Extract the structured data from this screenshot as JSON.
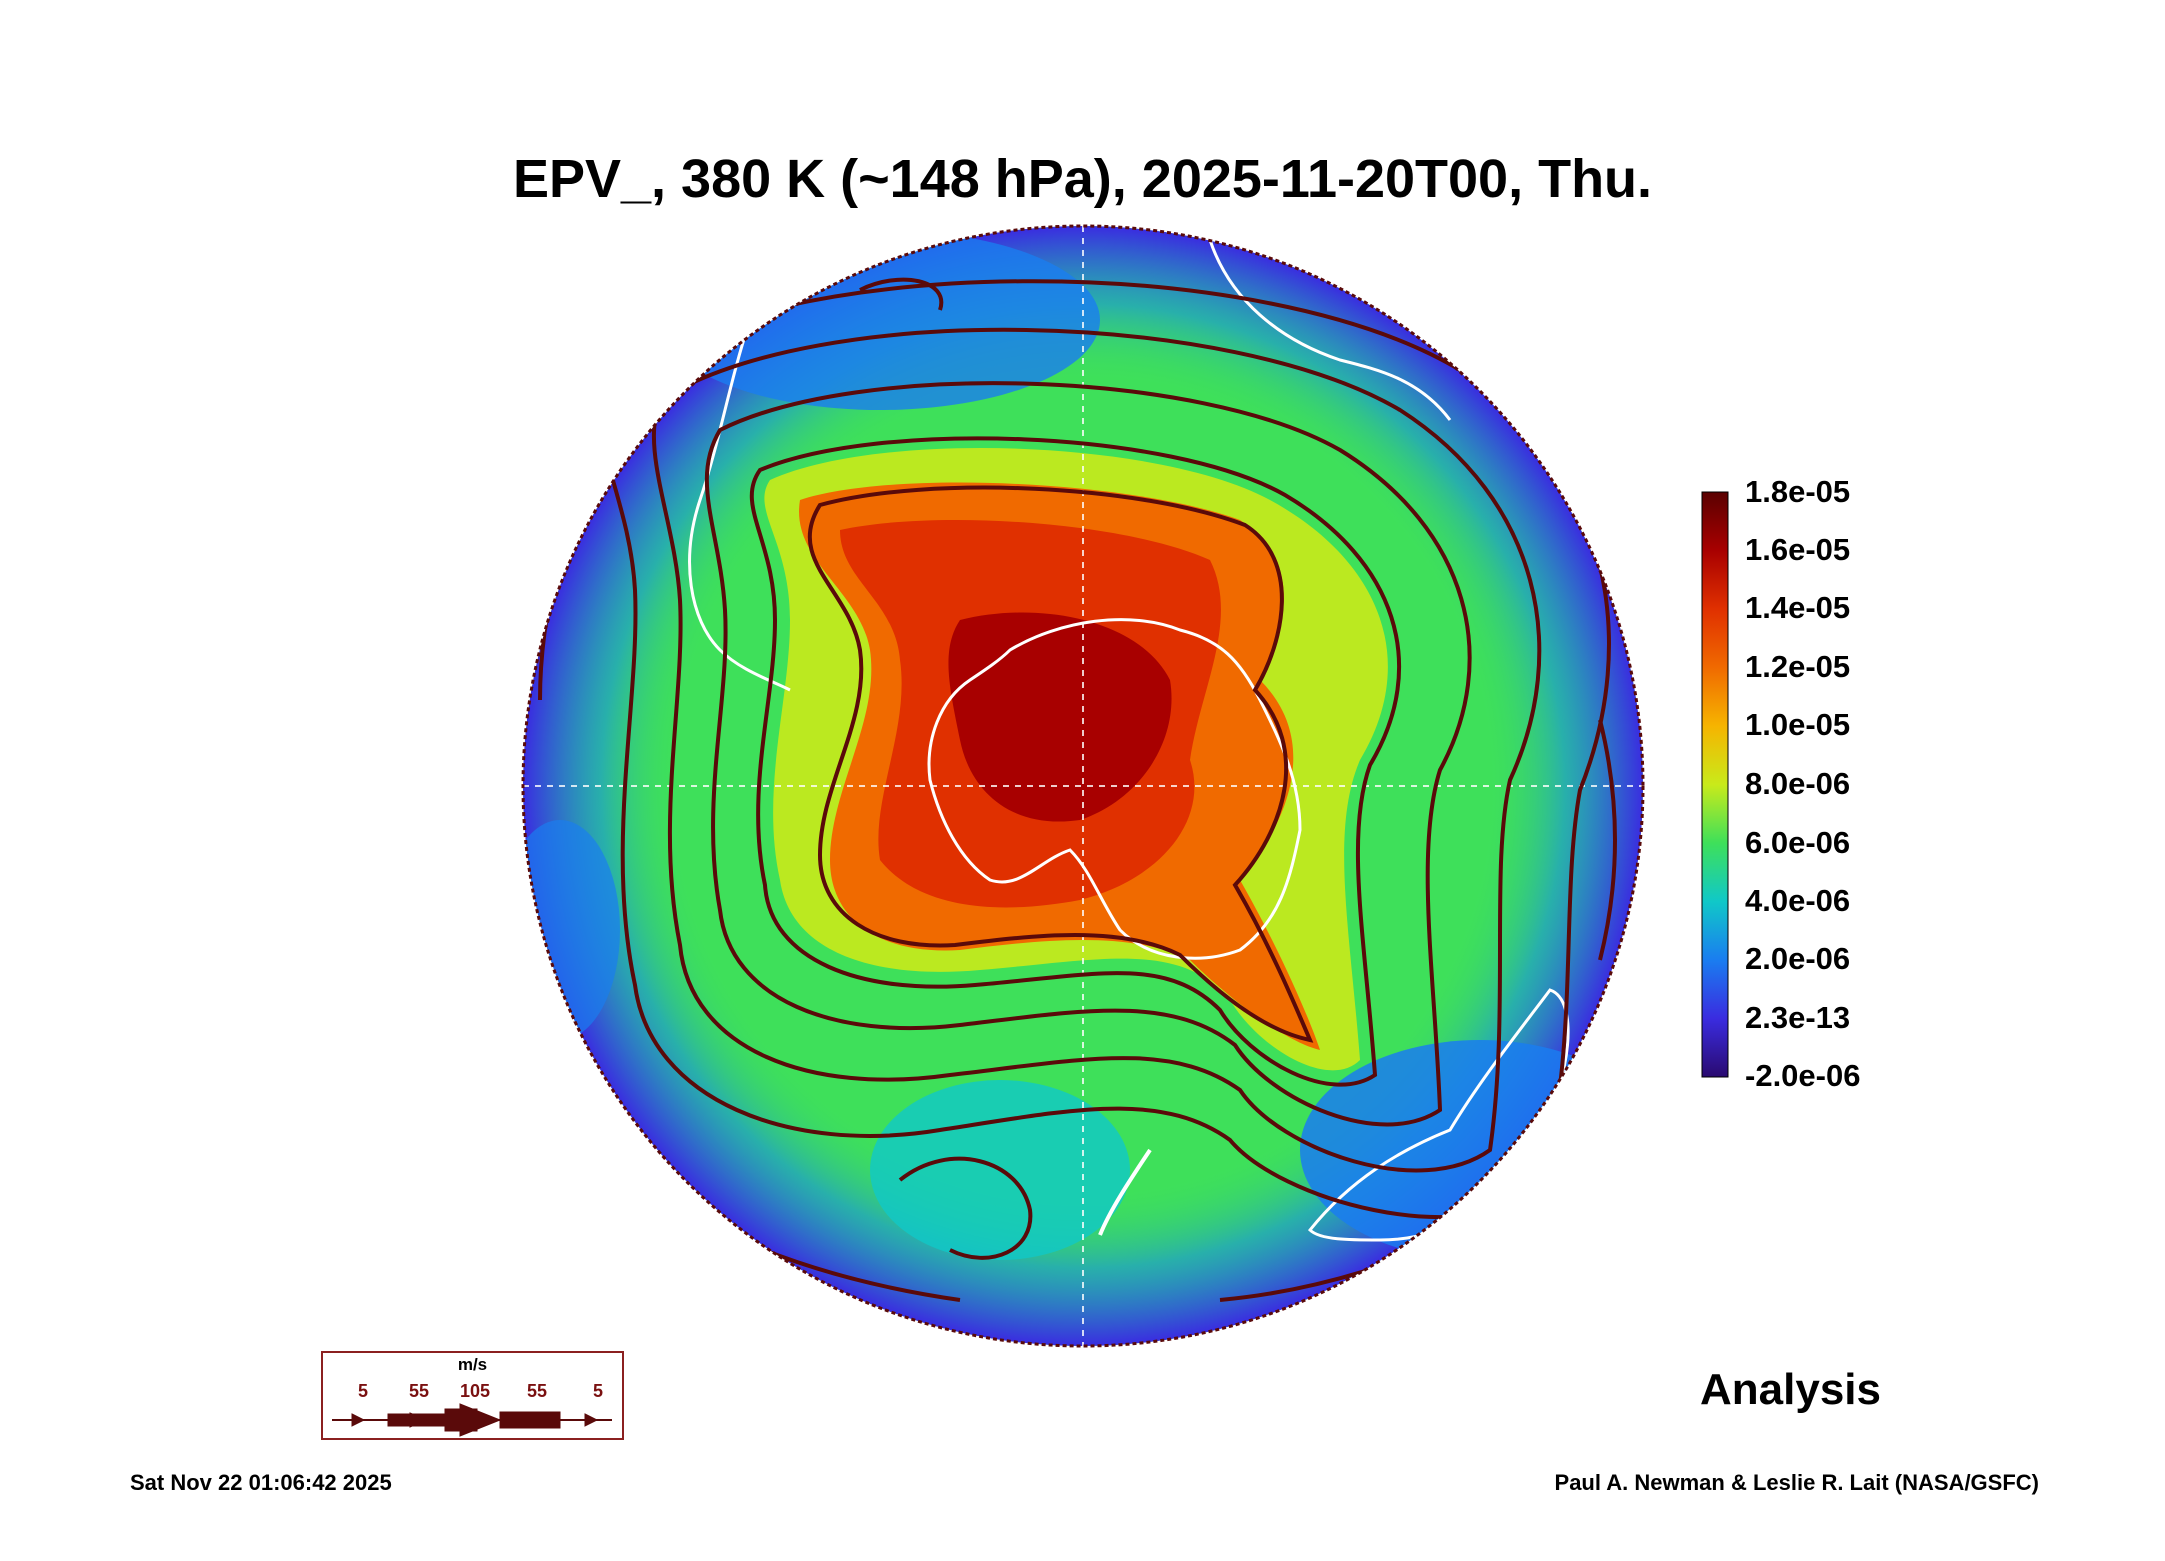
{
  "title": "EPV_, 380 K (~148 hPa), 2025-11-20T00, Thu.",
  "colorbar": {
    "labels": [
      "1.8e-05",
      "1.6e-05",
      "1.4e-05",
      "1.2e-05",
      "1.0e-05",
      "8.0e-06",
      "6.0e-06",
      "4.0e-06",
      "2.0e-06",
      "2.3e-13",
      "-2.0e-06"
    ],
    "colors": [
      "#5a0000",
      "#a80000",
      "#e03000",
      "#f06a00",
      "#f6b400",
      "#c9ea1a",
      "#3ee05a",
      "#10c8c8",
      "#1a7df0",
      "#3a2ce0",
      "#2a0a70"
    ]
  },
  "legend": {
    "units": "m/s",
    "speeds": [
      "5",
      "55",
      "105",
      "55",
      "5"
    ]
  },
  "footer": {
    "analysis": "Analysis",
    "datestamp": "Sat Nov 22 01:06:42 2025",
    "credit": "Paul A. Newman & Leslie R. Lait (NASA/GSFC)"
  },
  "map": {
    "projection": "orthographic, south pole",
    "field": "EPV_",
    "background_color": "#3a2ce0",
    "streamline_color": "#5a0a0a",
    "coastline_color": "#ffffff"
  }
}
